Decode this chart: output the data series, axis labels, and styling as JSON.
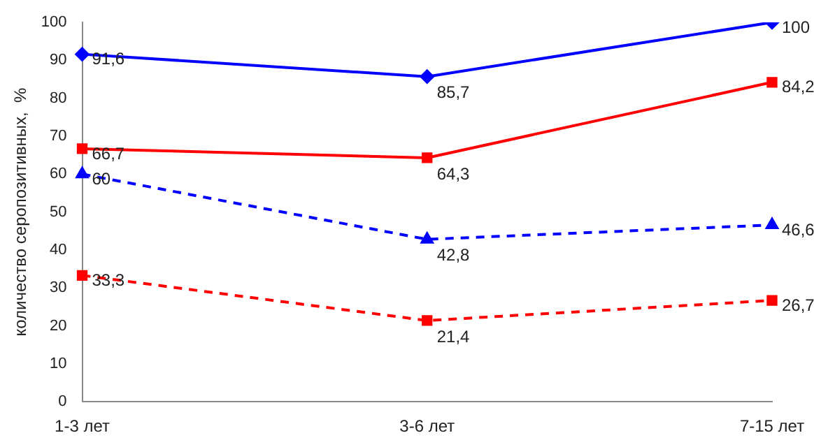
{
  "chart_data": {
    "type": "line",
    "ylabel": "количество серопозитивных,  %",
    "categories": [
      "1-3 лет",
      "3-6 лет",
      "7-15 лет"
    ],
    "series": [
      {
        "color": "#0000ff",
        "values": [
          91.6,
          85.7,
          100
        ],
        "value_labels": [
          "91,6",
          "85,7",
          "100"
        ],
        "marker": "diamond",
        "line_style": "solid"
      },
      {
        "color": "#ff0000",
        "values": [
          66.7,
          64.3,
          84.2
        ],
        "value_labels": [
          "66,7",
          "64,3",
          "84,2"
        ],
        "marker": "square",
        "line_style": "solid"
      },
      {
        "color": "#0000ff",
        "values": [
          60,
          42.8,
          46.6
        ],
        "value_labels": [
          "60",
          "42,8",
          "46,6"
        ],
        "marker": "triangle",
        "line_style": "dashed"
      },
      {
        "color": "#ff0000",
        "values": [
          33.3,
          21.4,
          26.7
        ],
        "value_labels": [
          "33,3",
          "21,4",
          "26,7"
        ],
        "marker": "square",
        "line_style": "dashed"
      }
    ],
    "ylim": [
      0,
      100
    ],
    "yticks": [
      0,
      10,
      20,
      30,
      40,
      50,
      60,
      70,
      80,
      90,
      100
    ],
    "grid": false,
    "legend": false
  }
}
